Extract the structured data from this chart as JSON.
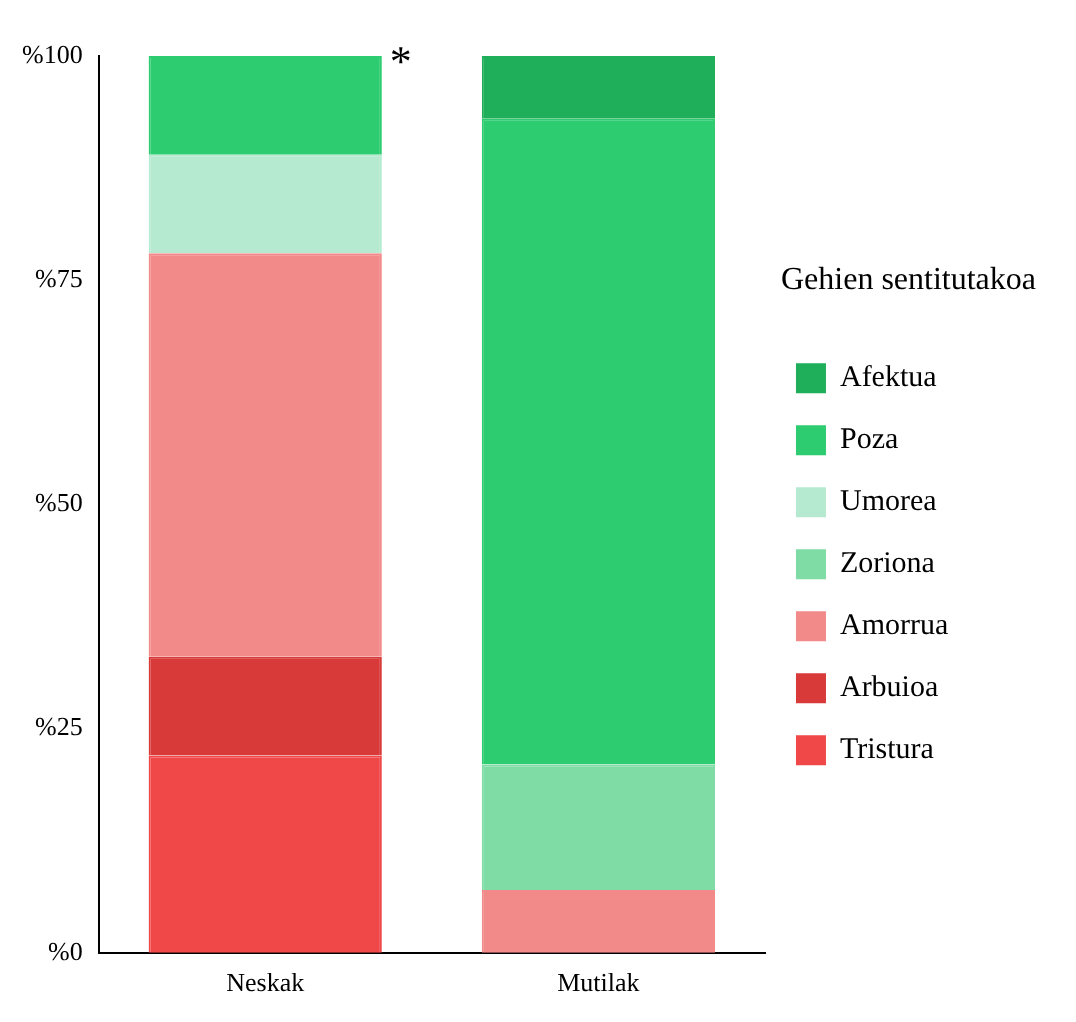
{
  "chart_data": {
    "type": "bar",
    "stacked": true,
    "categories": [
      "Neskak",
      "Mutilak"
    ],
    "legend_title": "Gehien sentitutakoa",
    "legend": "right",
    "grid": false,
    "ylim": [
      0,
      100
    ],
    "yticks": [
      {
        "value": 0,
        "label": "%0"
      },
      {
        "value": 25,
        "label": "%25"
      },
      {
        "value": 50,
        "label": "%50"
      },
      {
        "value": 75,
        "label": "%75"
      },
      {
        "value": 100,
        "label": "%100"
      }
    ],
    "annotations": [
      "*"
    ],
    "series": [
      {
        "name": "Tristura",
        "color": "#f04848",
        "values": [
          22,
          0
        ]
      },
      {
        "name": "Arbuioa",
        "color": "#d83a3a",
        "values": [
          11,
          0
        ]
      },
      {
        "name": "Amorrua",
        "color": "#f28a8a",
        "values": [
          45,
          7
        ]
      },
      {
        "name": "Zoriona",
        "color": "#7fdca5",
        "values": [
          0,
          14
        ]
      },
      {
        "name": "Umorea",
        "color": "#b5ead0",
        "values": [
          11,
          0
        ]
      },
      {
        "name": "Poza",
        "color": "#2ecc71",
        "values": [
          11,
          72
        ]
      },
      {
        "name": "Afektua",
        "color": "#1fae5a",
        "values": [
          0,
          7
        ]
      }
    ]
  }
}
